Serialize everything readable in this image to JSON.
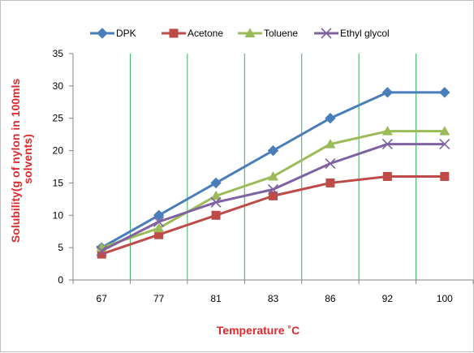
{
  "chart_data": {
    "type": "line",
    "categories": [
      "67",
      "77",
      "81",
      "83",
      "86",
      "92",
      "100"
    ],
    "series": [
      {
        "name": "DPK",
        "values": [
          5,
          10,
          15,
          20,
          25,
          29,
          29
        ],
        "color": "#4a7ebb",
        "marker": "diamond"
      },
      {
        "name": "Acetone",
        "values": [
          4,
          7,
          10,
          13,
          15,
          16,
          16
        ],
        "color": "#be4b48",
        "marker": "square"
      },
      {
        "name": "Toluene",
        "values": [
          5,
          8,
          13,
          16,
          21,
          23,
          23
        ],
        "color": "#9bbb59",
        "marker": "triangle"
      },
      {
        "name": "Ethyl glycol",
        "values": [
          4.5,
          9,
          12,
          14,
          18,
          21,
          21
        ],
        "color": "#7e62a1",
        "marker": "x"
      }
    ],
    "xlabel": "Temperature ˚C",
    "ylabel_lines": [
      "Solubility(g of nylon in 100mls",
      "solvents)"
    ],
    "ylim": [
      0,
      35
    ],
    "yticks": [
      "0",
      "5",
      "10",
      "15",
      "20",
      "25",
      "30",
      "35"
    ],
    "grid": "vertical",
    "grid_color": "#33b15a",
    "legend_position": "top"
  }
}
